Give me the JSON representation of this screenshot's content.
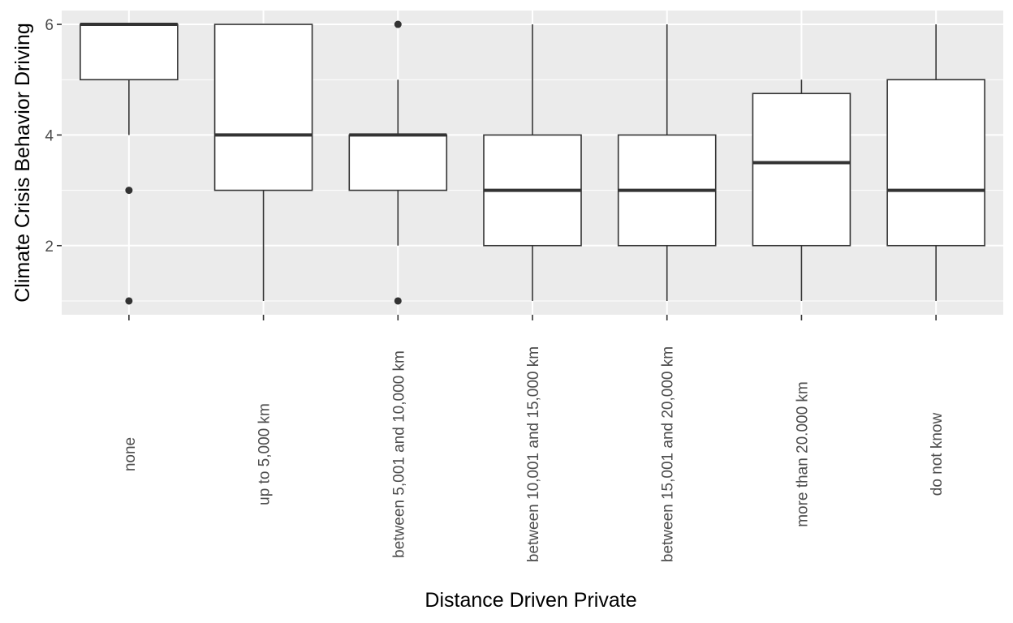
{
  "chart_data": {
    "type": "boxplot",
    "title": "",
    "xlabel": "Distance Driven Private",
    "ylabel": "Climate Crisis Behavior Driving",
    "ylim": [
      0.75,
      6.25
    ],
    "yticks": [
      2,
      4,
      6
    ],
    "grid": true,
    "panel_background": "#ebebeb",
    "categories": [
      "none",
      "up to 5,000 km",
      "between 5,001 and 10,000 km",
      "between 10,001 and 15,000 km",
      "between 15,001 and 20,000 km",
      "more than 20.000 km",
      "do not know"
    ],
    "boxes": [
      {
        "category": "none",
        "whisker_low": 4,
        "q1": 5,
        "median": 6,
        "q3": 6,
        "whisker_high": 6,
        "outliers": [
          3,
          1
        ]
      },
      {
        "category": "up to 5,000 km",
        "whisker_low": 1,
        "q1": 3,
        "median": 4,
        "q3": 6,
        "whisker_high": 6,
        "outliers": []
      },
      {
        "category": "between 5,001 and 10,000 km",
        "whisker_low": 2,
        "q1": 3,
        "median": 4,
        "q3": 4,
        "whisker_high": 5,
        "outliers": [
          6,
          1
        ]
      },
      {
        "category": "between 10,001 and 15,000 km",
        "whisker_low": 1,
        "q1": 2,
        "median": 3,
        "q3": 4,
        "whisker_high": 6,
        "outliers": []
      },
      {
        "category": "between 15,001 and 20,000 km",
        "whisker_low": 1,
        "q1": 2,
        "median": 3,
        "q3": 4,
        "whisker_high": 6,
        "outliers": []
      },
      {
        "category": "more than 20.000 km",
        "whisker_low": 1,
        "q1": 2,
        "median": 3.5,
        "q3": 4.75,
        "whisker_high": 5,
        "outliers": []
      },
      {
        "category": "do not know",
        "whisker_low": 1,
        "q1": 2,
        "median": 3,
        "q3": 5,
        "whisker_high": 6,
        "outliers": []
      }
    ]
  }
}
